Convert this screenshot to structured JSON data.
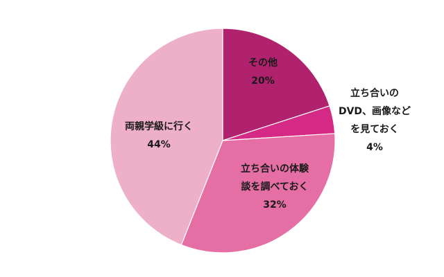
{
  "chart_data": {
    "type": "pie",
    "title": "",
    "start_angle_deg": 90,
    "direction": "clockwise",
    "slices": [
      {
        "label": "その他",
        "label_lines": [
          "その他"
        ],
        "value": 20,
        "value_label": "20%",
        "color": "#B0226E"
      },
      {
        "label": "立ち合いのDVD、画像などを見ておく",
        "label_lines": [
          "立ち合いの",
          "DVD、画像など",
          "を見ておく"
        ],
        "value": 4,
        "value_label": "4%",
        "color": "#D42A86"
      },
      {
        "label": "立ち合いの体験談を調べておく",
        "label_lines": [
          "立ち合いの体験",
          "談を調べておく"
        ],
        "value": 32,
        "value_label": "32%",
        "color": "#E56FA4"
      },
      {
        "label": "両親学級に行く",
        "label_lines": [
          "両親学級に行く"
        ],
        "value": 44,
        "value_label": "44%",
        "color": "#EEAFC8"
      }
    ],
    "legend": null,
    "data_labels": "category name and percentage"
  },
  "labels": {
    "other": {
      "line1": "その他",
      "value": "20%"
    },
    "dvd": {
      "line1": "立ち合いの",
      "line2": "DVD、画像など",
      "line3": "を見ておく",
      "value": "4%"
    },
    "experience": {
      "line1": "立ち合いの体験",
      "line2": "談を調べておく",
      "value": "32%"
    },
    "class": {
      "line1": "両親学級に行く",
      "value": "44%"
    }
  }
}
